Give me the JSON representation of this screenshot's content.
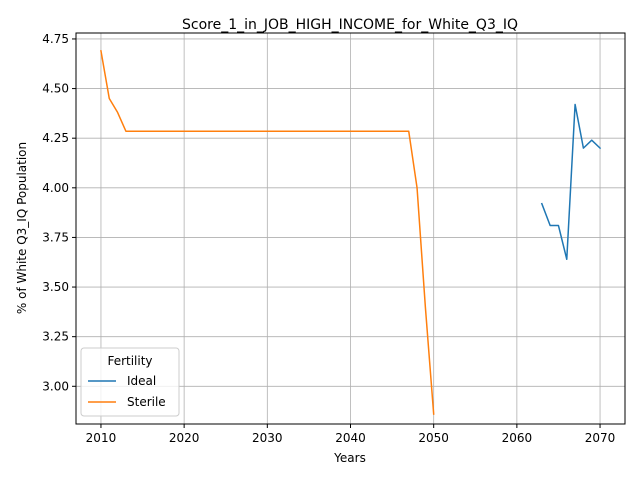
{
  "chart_data": {
    "type": "line",
    "title": "Score_1_in_JOB_HIGH_INCOME_for_White_Q3_IQ",
    "xlabel": "Years",
    "ylabel": "% of White Q3_IQ Population",
    "xlim": [
      2007,
      2073
    ],
    "ylim": [
      2.81,
      4.78
    ],
    "xticks": [
      2010,
      2020,
      2030,
      2040,
      2050,
      2060,
      2070
    ],
    "yticks": [
      3.0,
      3.25,
      3.5,
      3.75,
      4.0,
      4.25,
      4.5,
      4.75
    ],
    "xtick_labels": [
      "2010",
      "2020",
      "2030",
      "2040",
      "2050",
      "2060",
      "2070"
    ],
    "ytick_labels": [
      "3.00",
      "3.25",
      "3.50",
      "3.75",
      "4.00",
      "4.25",
      "4.50",
      "4.75"
    ],
    "grid": true,
    "legend": {
      "title": "Fertility",
      "placement": "lower-left"
    },
    "series": [
      {
        "name": "Ideal",
        "color": "#1f77b4",
        "x": [
          2063,
          2064,
          2065,
          2066,
          2067,
          2068,
          2069,
          2070
        ],
        "y": [
          3.92,
          3.81,
          3.81,
          3.64,
          4.42,
          4.2,
          4.24,
          4.2
        ]
      },
      {
        "name": "Sterile",
        "color": "#ff7f0e",
        "x": [
          2010,
          2011,
          2012,
          2013,
          2014,
          2015,
          2016,
          2017,
          2018,
          2019,
          2020,
          2021,
          2022,
          2023,
          2024,
          2025,
          2026,
          2027,
          2028,
          2029,
          2030,
          2031,
          2032,
          2033,
          2034,
          2035,
          2036,
          2037,
          2038,
          2039,
          2040,
          2041,
          2042,
          2043,
          2044,
          2045,
          2046,
          2047,
          2048,
          2049,
          2050
        ],
        "y": [
          4.69,
          4.45,
          4.38,
          4.285,
          4.285,
          4.285,
          4.285,
          4.285,
          4.285,
          4.285,
          4.285,
          4.285,
          4.285,
          4.285,
          4.285,
          4.285,
          4.285,
          4.285,
          4.285,
          4.285,
          4.285,
          4.285,
          4.285,
          4.285,
          4.285,
          4.285,
          4.285,
          4.285,
          4.285,
          4.285,
          4.285,
          4.285,
          4.285,
          4.285,
          4.285,
          4.285,
          4.285,
          4.285,
          4.0,
          3.4,
          2.86
        ]
      }
    ]
  }
}
